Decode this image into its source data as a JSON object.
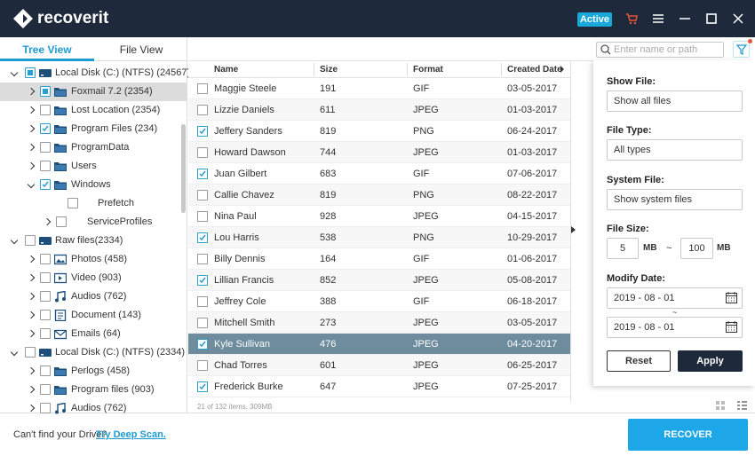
{
  "header": {
    "logo": "recoverit",
    "status": "Active"
  },
  "tabs": [
    "Tree View",
    "File View"
  ],
  "active_tab": 0,
  "search": {
    "placeholder": "Enter name or path"
  },
  "selected_tree": 1,
  "tree": [
    {
      "label": "Local Disk (C:) (NTFS) (24567)",
      "level": 0,
      "expand": "open",
      "check": "partial",
      "icon": "disk"
    },
    {
      "label": "Foxmail 7.2 (2354)",
      "level": 1,
      "expand": "closed",
      "check": "partial",
      "icon": "folder"
    },
    {
      "label": "Lost Location (2354)",
      "level": 1,
      "expand": "closed",
      "check": "none",
      "icon": "folder"
    },
    {
      "label": "Program Files (234)",
      "level": 1,
      "expand": "closed",
      "check": "checked",
      "icon": "folder"
    },
    {
      "label": "ProgramData",
      "level": 1,
      "expand": "closed",
      "check": "none",
      "icon": "folder"
    },
    {
      "label": "Users",
      "level": 1,
      "expand": "closed",
      "check": "none",
      "icon": "folder"
    },
    {
      "label": "Windows",
      "level": 1,
      "expand": "open",
      "check": "checked",
      "icon": "folder"
    },
    {
      "label": "Prefetch",
      "level": 2,
      "expand": "none",
      "check": "none",
      "icon": "none"
    },
    {
      "label": "ServiceProfiles",
      "level": 2,
      "expand": "closed",
      "check": "none",
      "icon": "none"
    },
    {
      "label": "Raw files(2334)",
      "level": 0,
      "expand": "open",
      "check": "none",
      "icon": "disk"
    },
    {
      "label": "Photos (458)",
      "level": 1,
      "expand": "closed",
      "check": "none",
      "icon": "photo"
    },
    {
      "label": "Video (903)",
      "level": 1,
      "expand": "closed",
      "check": "none",
      "icon": "video"
    },
    {
      "label": "Audios (762)",
      "level": 1,
      "expand": "closed",
      "check": "none",
      "icon": "audio"
    },
    {
      "label": "Document (143)",
      "level": 1,
      "expand": "closed",
      "check": "none",
      "icon": "doc"
    },
    {
      "label": "Emails (64)",
      "level": 1,
      "expand": "closed",
      "check": "none",
      "icon": "mail"
    },
    {
      "label": "Local Disk (C:) (NTFS) (2334)",
      "level": 0,
      "expand": "open",
      "check": "none",
      "icon": "disk"
    },
    {
      "label": "Perlogs (458)",
      "level": 1,
      "expand": "closed",
      "check": "none",
      "icon": "folder"
    },
    {
      "label": "Program files (903)",
      "level": 1,
      "expand": "closed",
      "check": "none",
      "icon": "folder"
    },
    {
      "label": "Audios (762)",
      "level": 1,
      "expand": "closed",
      "check": "none",
      "icon": "audio"
    }
  ],
  "table": {
    "columns": [
      "Name",
      "Size",
      "Format",
      "Created Date"
    ],
    "selected_row": 12,
    "rows": [
      {
        "cells": [
          "Maggie Steele",
          "191",
          "GIF",
          "03-05-2017"
        ],
        "checked": false
      },
      {
        "cells": [
          "Lizzie Daniels",
          "611",
          "JPEG",
          "01-03-2017"
        ],
        "checked": false
      },
      {
        "cells": [
          "Jeffery Sanders",
          "819",
          "PNG",
          "06-24-2017"
        ],
        "checked": true
      },
      {
        "cells": [
          "Howard Dawson",
          "744",
          "JPEG",
          "01-03-2017"
        ],
        "checked": false
      },
      {
        "cells": [
          "Juan Gilbert",
          "683",
          "GIF",
          "07-06-2017"
        ],
        "checked": true
      },
      {
        "cells": [
          "Callie Chavez",
          "819",
          "PNG",
          "08-22-2017"
        ],
        "checked": false
      },
      {
        "cells": [
          "Nina Paul",
          "928",
          "JPEG",
          "04-15-2017"
        ],
        "checked": false
      },
      {
        "cells": [
          "Lou Harris",
          "538",
          "PNG",
          "10-29-2017"
        ],
        "checked": true
      },
      {
        "cells": [
          "Billy Dennis",
          "164",
          "GIF",
          "01-06-2017"
        ],
        "checked": false
      },
      {
        "cells": [
          "Lillian Francis",
          "852",
          "JPEG",
          "05-08-2017"
        ],
        "checked": true
      },
      {
        "cells": [
          "Jeffrey Cole",
          "388",
          "GIF",
          "06-18-2017"
        ],
        "checked": false
      },
      {
        "cells": [
          "Mitchell Smith",
          "273",
          "JPEG",
          "03-05-2017"
        ],
        "checked": false
      },
      {
        "cells": [
          "Kyle Sullivan",
          "476",
          "JPEG",
          "04-20-2017"
        ],
        "checked": true
      },
      {
        "cells": [
          "Chad Torres",
          "601",
          "JPEG",
          "06-25-2017"
        ],
        "checked": false
      },
      {
        "cells": [
          "Frederick Burke",
          "647",
          "JPEG",
          "07-25-2017"
        ],
        "checked": true
      }
    ],
    "footer": "21 of 132 items, 309MB"
  },
  "filter": {
    "show_file_label": "Show File:",
    "show_file": "Show all files",
    "file_type_label": "File Type:",
    "file_type": "All types",
    "system_file_label": "System File:",
    "system_file": "Show system files",
    "size_label": "File Size:",
    "size_min": "5",
    "size_min_unit": "MB",
    "size_sep": "~",
    "size_max": "100",
    "size_max_unit": "MB",
    "date_label": "Modify Date:",
    "date_from": "2019 - 08 - 01",
    "date_sep": "~",
    "date_to": "2019 - 08 - 01",
    "reset": "Reset",
    "apply": "Apply"
  },
  "footer": {
    "prompt": "Can't find your Drive?",
    "link": "Try Deep Scan.",
    "button": "RECOVER"
  }
}
